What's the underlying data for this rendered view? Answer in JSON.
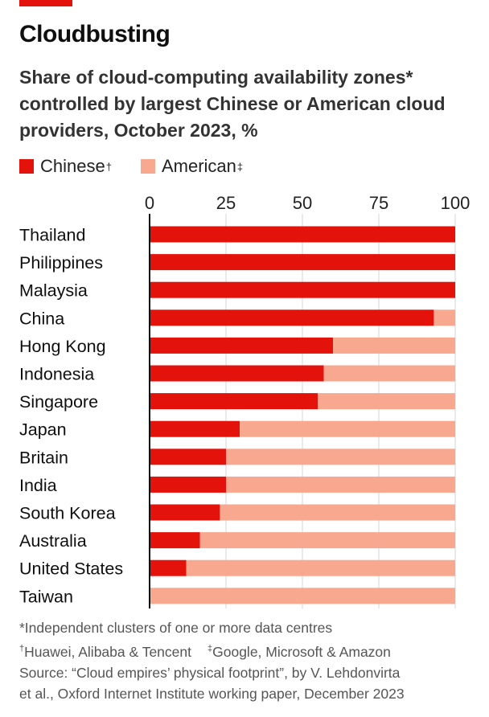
{
  "header": {
    "title": "Cloudbusting",
    "subtitle": "Share of cloud-computing availability zones* controlled by largest Chinese or American cloud providers, October 2023, %"
  },
  "legend": {
    "chinese": {
      "label": "Chinese",
      "mark": "†"
    },
    "american": {
      "label": "American",
      "mark": "‡"
    }
  },
  "colors": {
    "chinese": "#e3120b",
    "american": "#f7a88f",
    "axis": "#0f0f0f",
    "grid": "#d5d5d5"
  },
  "chart_data": {
    "type": "bar",
    "orientation": "horizontal",
    "stacked": true,
    "categories": [
      "Thailand",
      "Philippines",
      "Malaysia",
      "China",
      "Hong Kong",
      "Indonesia",
      "Singapore",
      "Japan",
      "Britain",
      "India",
      "South Korea",
      "Australia",
      "United States",
      "Taiwan"
    ],
    "series": [
      {
        "name": "Chinese",
        "values": [
          100,
          100,
          100,
          93,
          60,
          57,
          55,
          29.5,
          25,
          25,
          23,
          16.5,
          12,
          0
        ]
      },
      {
        "name": "American",
        "values": [
          0,
          0,
          0,
          7,
          40,
          43,
          45,
          70.5,
          75,
          75,
          77,
          83.5,
          88,
          100
        ]
      }
    ],
    "xlim": [
      0,
      100
    ],
    "xticks": [
      "0",
      "25",
      "50",
      "75",
      "100"
    ],
    "xaxis_position": "top",
    "grid": true,
    "legend_position": "top-left"
  },
  "footnotes": {
    "asterisk": "*Independent clusters of one or more data centres",
    "dagger_mark": "†",
    "dagger": "Huawei, Alibaba & Tencent",
    "ddagger_mark": "‡",
    "ddagger": "Google, Microsoft & Amazon",
    "source_line1": "Source: “Cloud empires’ physical footprint”, by V. Lehdonvirta",
    "source_line2": "et al., Oxford Internet Institute working paper, December 2023"
  }
}
